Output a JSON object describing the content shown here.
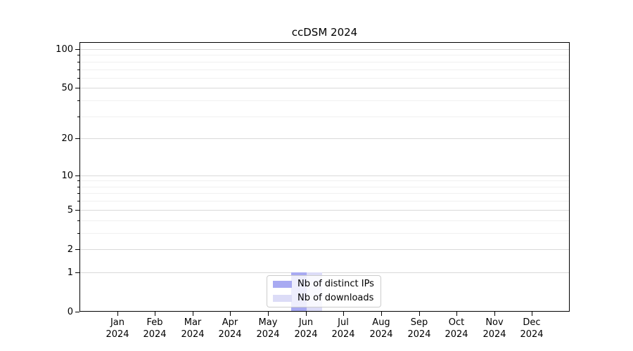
{
  "chart_data": {
    "type": "bar",
    "title": "ccDSM 2024",
    "categories": [
      "Jan 2024",
      "Feb 2024",
      "Mar 2024",
      "Apr 2024",
      "May 2024",
      "Jun 2024",
      "Jul 2024",
      "Aug 2024",
      "Sep 2024",
      "Oct 2024",
      "Nov 2024",
      "Dec 2024"
    ],
    "series": [
      {
        "name": "Nb of distinct IPs",
        "color": "#a8aaf2",
        "values": [
          0,
          0,
          0,
          0,
          0,
          1,
          0,
          0,
          0,
          0,
          0,
          0
        ]
      },
      {
        "name": "Nb of downloads",
        "color": "#dcdcf7",
        "values": [
          0,
          0,
          0,
          0,
          0,
          1,
          0,
          0,
          0,
          0,
          0,
          0
        ]
      }
    ],
    "xlabel": "",
    "ylabel": "",
    "yscale": "log1p",
    "yticks_major": [
      0,
      1,
      2,
      5,
      10,
      20,
      50,
      100
    ],
    "yticks_minor": [
      3,
      4,
      6,
      7,
      8,
      9,
      30,
      40,
      60,
      70,
      80,
      90
    ],
    "ylim": [
      0,
      113
    ],
    "grid": true,
    "legend_position": "lower center"
  },
  "colors": {
    "major_grid": "#d9d9d9",
    "minor_grid": "#f0f0f0",
    "axis": "#000000",
    "background": "#ffffff",
    "legend_border": "#cccccc"
  }
}
